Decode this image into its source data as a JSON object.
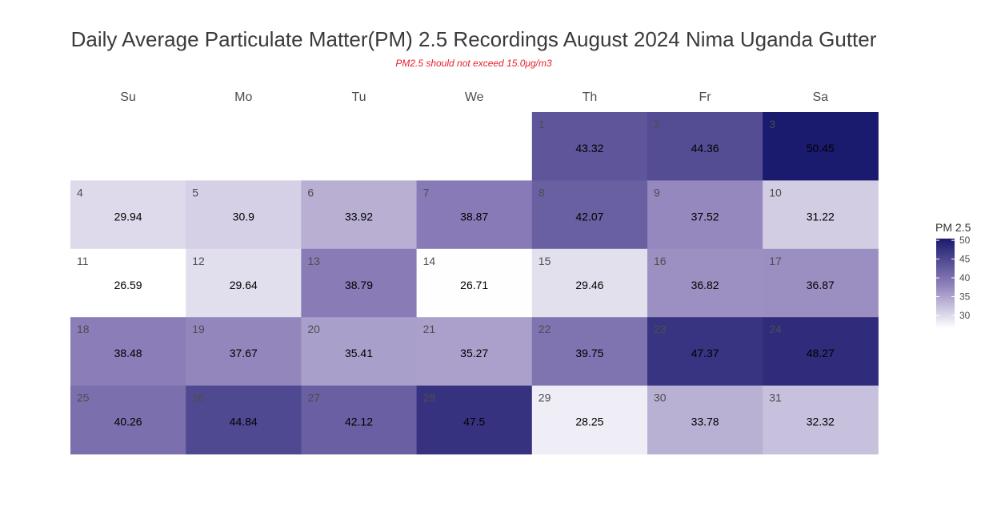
{
  "chart_data": {
    "type": "heatmap",
    "title": "Daily Average Particulate Matter(PM) 2.5 Recordings August 2024 Nima Uganda Gutter",
    "subtitle": "PM2.5 should not exceed 15.0μg/m3",
    "weekdays": [
      "Su",
      "Mo",
      "Tu",
      "We",
      "Th",
      "Fr",
      "Sa"
    ],
    "first_weekday_index": 4,
    "days": [
      {
        "day": 1,
        "value": 43.32
      },
      {
        "day": 2,
        "value": 44.36
      },
      {
        "day": 3,
        "value": 50.45
      },
      {
        "day": 4,
        "value": 29.94
      },
      {
        "day": 5,
        "value": 30.9
      },
      {
        "day": 6,
        "value": 33.92
      },
      {
        "day": 7,
        "value": 38.87
      },
      {
        "day": 8,
        "value": 42.07
      },
      {
        "day": 9,
        "value": 37.52
      },
      {
        "day": 10,
        "value": 31.22
      },
      {
        "day": 11,
        "value": 26.59
      },
      {
        "day": 12,
        "value": 29.64
      },
      {
        "day": 13,
        "value": 38.79
      },
      {
        "day": 14,
        "value": 26.71
      },
      {
        "day": 15,
        "value": 29.46
      },
      {
        "day": 16,
        "value": 36.82
      },
      {
        "day": 17,
        "value": 36.87
      },
      {
        "day": 18,
        "value": 38.48
      },
      {
        "day": 19,
        "value": 37.67
      },
      {
        "day": 20,
        "value": 35.41
      },
      {
        "day": 21,
        "value": 35.27
      },
      {
        "day": 22,
        "value": 39.75
      },
      {
        "day": 23,
        "value": 47.37
      },
      {
        "day": 24,
        "value": 48.27
      },
      {
        "day": 25,
        "value": 40.26
      },
      {
        "day": 26,
        "value": 44.84
      },
      {
        "day": 27,
        "value": 42.12
      },
      {
        "day": 28,
        "value": 47.5
      },
      {
        "day": 29,
        "value": 28.25
      },
      {
        "day": 30,
        "value": 33.78
      },
      {
        "day": 31,
        "value": 32.32
      }
    ],
    "legend": {
      "title": "PM 2.5",
      "ticks": [
        30,
        35,
        40,
        45,
        50
      ],
      "range": [
        26.59,
        50.45
      ],
      "placement": "right"
    },
    "colors": {
      "low": "#ffffff",
      "mid": "#8b7db8",
      "high": "#1a1a6e"
    }
  }
}
